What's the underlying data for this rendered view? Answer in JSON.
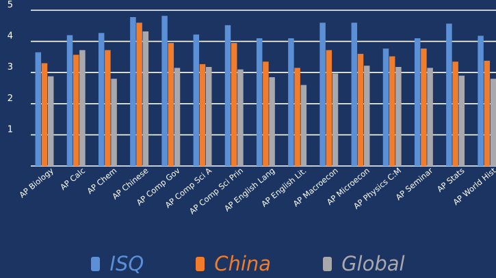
{
  "chart_data": {
    "type": "bar",
    "categories": [
      "AP Biology",
      "AP Calc",
      "AP Chem",
      "AP Chinese",
      "AP Comp Gov",
      "AP Comp Sci A",
      "AP Comp Sci Prin",
      "AP English Lang",
      "AP English Lit.",
      "AP Macroecon",
      "AP Microecon",
      "AP Physics C:M",
      "AP Seminar",
      "AP Stats",
      "AP World Hist"
    ],
    "series": [
      {
        "name": "ISQ",
        "color": "#5b8fd6",
        "values": [
          3.65,
          4.2,
          4.27,
          4.78,
          4.82,
          4.22,
          4.52,
          4.1,
          4.1,
          4.6,
          4.6,
          3.77,
          4.1,
          4.57,
          4.18
        ]
      },
      {
        "name": "China",
        "color": "#f07c2c",
        "values": [
          3.3,
          3.57,
          3.72,
          4.6,
          3.95,
          3.27,
          3.95,
          3.35,
          3.15,
          3.72,
          3.6,
          3.52,
          3.77,
          3.35,
          3.38
        ]
      },
      {
        "name": "Global",
        "color": "#a9a8ad",
        "values": [
          2.88,
          3.72,
          2.8,
          4.32,
          3.15,
          3.18,
          3.1,
          2.85,
          2.6,
          2.97,
          3.22,
          3.18,
          3.15,
          2.9,
          2.8
        ]
      }
    ],
    "y_ticks": [
      1,
      2,
      3,
      4,
      5
    ],
    "ylim": [
      0,
      5
    ],
    "grid": true,
    "legend_position": "bottom"
  }
}
